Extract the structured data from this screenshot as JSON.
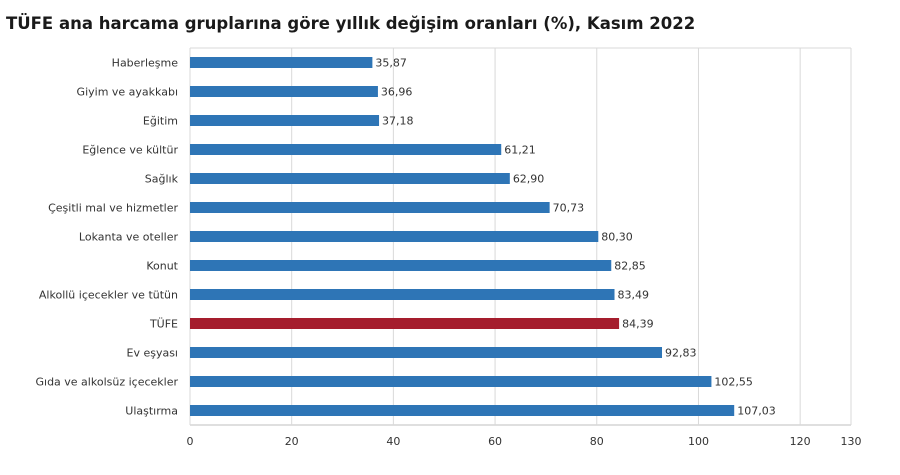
{
  "chart_data": {
    "type": "bar",
    "orientation": "horizontal",
    "title": "TÜFE ana harcama gruplarına göre yıllık değişim oranları (%), Kasım 2022",
    "xlabel": "",
    "ylabel": "",
    "xlim": [
      0,
      130
    ],
    "x_ticks": [
      "0",
      "20",
      "40",
      "60",
      "80",
      "100",
      "120",
      "130"
    ],
    "x_tick_values": [
      0,
      20,
      40,
      60,
      80,
      100,
      120,
      130
    ],
    "grid": true,
    "legend": "none",
    "colors": {
      "bar": "#2e75b6",
      "highlight": "#a51d2d",
      "grid": "#d9d9d9",
      "axis": "#bfbfbf"
    },
    "categories": [
      "Haberleşme",
      "Giyim ve ayakkabı",
      "Eğitim",
      "Eğlence ve kültür",
      "Sağlık",
      "Çeşitli mal ve hizmetler",
      "Lokanta ve oteller",
      "Konut",
      "Alkollü içecekler ve tütün",
      "TÜFE",
      "Ev eşyası",
      "Gıda ve alkolsüz içecekler",
      "Ulaştırma"
    ],
    "values": [
      35.87,
      36.96,
      37.18,
      61.21,
      62.9,
      70.73,
      80.3,
      82.85,
      83.49,
      84.39,
      92.83,
      102.55,
      107.03
    ],
    "value_labels": [
      "35,87",
      "36,96",
      "37,18",
      "61,21",
      "62,90",
      "70,73",
      "80,30",
      "82,85",
      "83,49",
      "84,39",
      "92,83",
      "102,55",
      "107,03"
    ],
    "highlight_category": "TÜFE"
  }
}
